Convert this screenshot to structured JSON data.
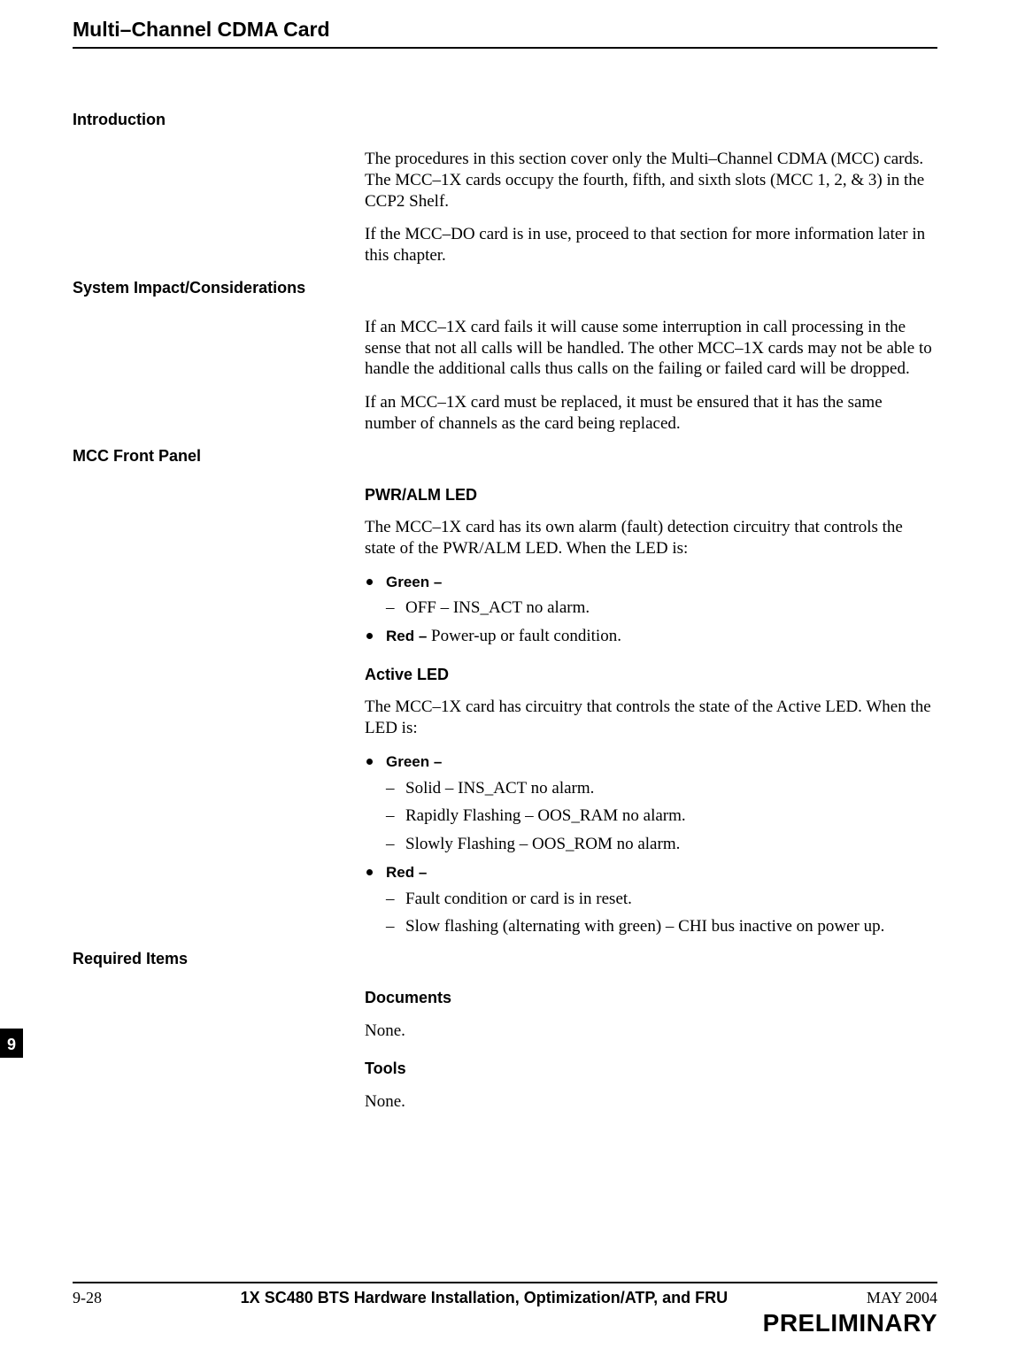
{
  "page_title": "Multi–Channel CDMA Card",
  "chapter_tab": "9",
  "sections": {
    "intro": {
      "heading": "Introduction",
      "p1": "The procedures in this section cover only the Multi–Channel CDMA (MCC) cards. The MCC–1X cards occupy the fourth, fifth, and sixth slots (MCC 1, 2, & 3) in the CCP2 Shelf.",
      "p2": "If the MCC–DO card is in use, proceed to that section for more information later in this chapter."
    },
    "impact": {
      "heading": "System Impact/Considerations",
      "p1": "If an MCC–1X card fails it will cause some interruption in call processing in the sense that not all calls will be handled. The other MCC–1X cards may not be able to handle the additional calls thus calls on the failing or failed card will be dropped.",
      "p2": "If an MCC–1X card must be replaced, it must be ensured that it has the same number of channels as the card being replaced."
    },
    "front_panel": {
      "heading": "MCC Front Panel",
      "pwr_alm": {
        "heading": "PWR/ALM LED",
        "intro": "The MCC–1X card has its own alarm (fault) detection circuitry that controls the state of the PWR/ALM LED. When the LED is:",
        "green_label": "Green –",
        "green_item1": "OFF – INS_ACT no alarm.",
        "red_label": "Red – ",
        "red_text": "Power-up or fault condition."
      },
      "active": {
        "heading": "Active LED",
        "intro": "The MCC–1X card has circuitry that controls the state of the Active LED. When the LED is:",
        "green_label": "Green –",
        "green_item1": "Solid – INS_ACT no alarm.",
        "green_item2": "Rapidly Flashing  – OOS_RAM no alarm.",
        "green_item3": "Slowly Flashing – OOS_ROM no alarm.",
        "red_label": "Red –",
        "red_item1": "Fault condition or card is in reset.",
        "red_item2": "Slow flashing (alternating with green) – CHI bus inactive on power up."
      }
    },
    "required": {
      "heading": "Required Items",
      "documents": {
        "heading": "Documents",
        "value": "None."
      },
      "tools": {
        "heading": "Tools",
        "value": "None."
      }
    }
  },
  "footer": {
    "page_no": "9-28",
    "title": "1X SC480 BTS Hardware Installation, Optimization/ATP, and FRU",
    "date": "MAY 2004",
    "preliminary": "PRELIMINARY"
  }
}
